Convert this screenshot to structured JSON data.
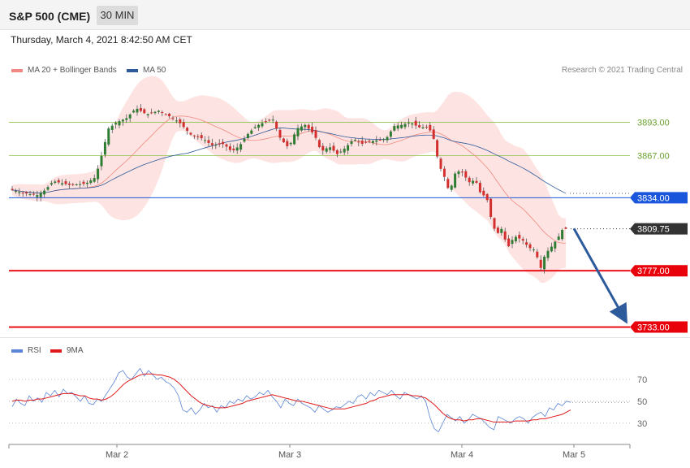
{
  "header": {
    "title": "S&P 500 (CME)",
    "timeframe": "30 MIN"
  },
  "timestamp": "Thursday, March 4, 2021 8:42:50 AM CET",
  "legend": {
    "ma20": {
      "label": "MA 20 + Bollinger Bands",
      "color": "#f08a80"
    },
    "ma50": {
      "label": "MA 50",
      "color": "#2d5a9b"
    },
    "rsi": {
      "label": "RSI",
      "color": "#5b84d6"
    },
    "rsi_ma": {
      "label": "9MA",
      "color": "#e01a1a"
    }
  },
  "copyright": "Research © 2021 Trading Central",
  "chart_data": [
    {
      "type": "candlestick",
      "ylim": [
        3727,
        3925
      ],
      "x_tick_labels": [
        "Mar 2",
        "Mar 3",
        "Mar 4",
        "Mar 5"
      ],
      "resistance": [
        3893.0,
        3867.0
      ],
      "pivot": 3834.0,
      "supports": [
        3777.0,
        3733.0
      ],
      "last_price": 3809.75,
      "price_labels": {
        "r1": "3893.00",
        "r2": "3867.00",
        "pivot": "3834.00",
        "last": "3809.75",
        "s1": "3777.00",
        "s2": "3733.00"
      },
      "target_arrow": {
        "from": 3810,
        "to": 3735
      },
      "colors": {
        "up": "#2e7d32",
        "down": "#d32f2f",
        "resistance": "#8bc34a",
        "pivot": "#1a56db",
        "support": "#e8000b",
        "band": "#fde3e1"
      }
    },
    {
      "type": "line",
      "name": "RSI",
      "ylim": [
        12,
        90
      ],
      "y_levels": [
        70,
        50,
        30
      ],
      "level_labels": [
        "70",
        "50",
        "30"
      ],
      "series": [
        {
          "name": "RSI",
          "values": [
            45,
            52,
            48,
            46,
            55,
            50,
            53,
            49,
            58,
            55,
            60,
            54,
            61,
            57,
            58,
            54,
            50,
            55,
            48,
            47,
            52,
            50,
            56,
            62,
            68,
            76,
            78,
            72,
            70,
            75,
            80,
            73,
            78,
            74,
            70,
            72,
            68,
            66,
            62,
            55,
            42,
            40,
            44,
            38,
            42,
            48,
            44,
            46,
            40,
            46,
            44,
            50,
            48,
            52,
            50,
            55,
            52,
            54,
            58,
            56,
            60,
            54,
            50,
            44,
            52,
            48,
            46,
            52,
            48,
            46,
            44,
            40,
            46,
            43,
            40,
            42,
            45,
            44,
            47,
            50,
            48,
            54,
            56,
            52,
            58,
            55,
            60,
            58,
            56,
            60,
            55,
            52,
            58,
            56,
            54,
            52,
            55,
            50,
            35,
            25,
            22,
            30,
            38,
            35,
            32,
            36,
            30,
            33,
            38,
            36,
            34,
            30,
            26,
            24,
            36,
            34,
            32,
            30,
            34,
            36,
            34,
            30,
            35,
            38,
            40,
            36,
            44,
            42,
            48,
            46,
            50,
            49
          ]
        },
        {
          "name": "9MA",
          "values": [
            50,
            51,
            51,
            50,
            51,
            51,
            52,
            52,
            53,
            54,
            55,
            56,
            57,
            57,
            57,
            56,
            55,
            55,
            53,
            52,
            52,
            51,
            52,
            54,
            57,
            61,
            65,
            68,
            70,
            72,
            74,
            75,
            75,
            75,
            74,
            74,
            73,
            72,
            70,
            67,
            63,
            59,
            55,
            52,
            49,
            47,
            46,
            45,
            44,
            44,
            44,
            45,
            46,
            47,
            48,
            50,
            51,
            52,
            53,
            54,
            55,
            56,
            55,
            54,
            53,
            52,
            51,
            50,
            50,
            49,
            48,
            47,
            46,
            45,
            44,
            43,
            43,
            43,
            43,
            44,
            45,
            46,
            47,
            48,
            50,
            51,
            53,
            54,
            55,
            56,
            56,
            56,
            56,
            56,
            55,
            55,
            54,
            53,
            50,
            47,
            43,
            39,
            36,
            34,
            33,
            33,
            32,
            33,
            33,
            34,
            34,
            33,
            32,
            31,
            31,
            31,
            31,
            31,
            32,
            32,
            32,
            32,
            33,
            33,
            34,
            34,
            35,
            36,
            37,
            38,
            40,
            42
          ]
        }
      ]
    }
  ]
}
